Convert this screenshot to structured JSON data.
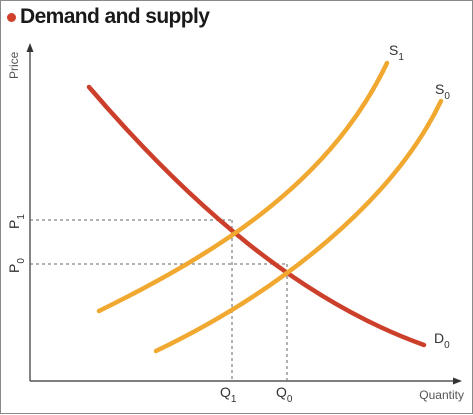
{
  "title": "Demand and supply",
  "colors": {
    "title_dot": "#d0402a",
    "demand": "#cc3f2a",
    "supply": "#f0a830",
    "axis": "#333333",
    "guide": "#666666"
  },
  "chart_data": {
    "type": "line",
    "title": "Demand and supply",
    "xlabel": "Quantity",
    "ylabel": "Price",
    "ticks": {
      "x": [
        {
          "main": "Q",
          "sub": "1"
        },
        {
          "main": "Q",
          "sub": "0"
        }
      ],
      "y": [
        {
          "main": "P",
          "sub": "1"
        },
        {
          "main": "P",
          "sub": "0"
        }
      ]
    },
    "grid": false,
    "series": [
      {
        "name": "D",
        "sub": "0",
        "role": "demand"
      },
      {
        "name": "S",
        "sub": "1",
        "role": "supply"
      },
      {
        "name": "S",
        "sub": "0",
        "role": "supply"
      }
    ]
  }
}
